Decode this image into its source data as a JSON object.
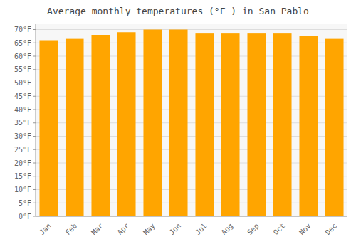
{
  "chart_data": {
    "type": "bar",
    "title": "Average monthly temperatures (°F ) in San Pablo",
    "categories": [
      "Jan",
      "Feb",
      "Mar",
      "Apr",
      "May",
      "Jun",
      "Jul",
      "Aug",
      "Sep",
      "Oct",
      "Nov",
      "Dec"
    ],
    "values": [
      66,
      66.5,
      68,
      69,
      70,
      70,
      68.5,
      68.5,
      68.5,
      68.5,
      67.5,
      66.5
    ],
    "color": "#FFA500",
    "ylim": [
      0,
      72
    ],
    "yticks": [
      {
        "value": 0,
        "label": "0°F"
      },
      {
        "value": 5,
        "label": "5°F"
      },
      {
        "value": 10,
        "label": "10°F"
      },
      {
        "value": 15,
        "label": "15°F"
      },
      {
        "value": 20,
        "label": "20°F"
      },
      {
        "value": 25,
        "label": "25°F"
      },
      {
        "value": 30,
        "label": "30°F"
      },
      {
        "value": 35,
        "label": "35°F"
      },
      {
        "value": 40,
        "label": "40°F"
      },
      {
        "value": 45,
        "label": "45°F"
      },
      {
        "value": 50,
        "label": "50°F"
      },
      {
        "value": 55,
        "label": "55°F"
      },
      {
        "value": 60,
        "label": "60°F"
      },
      {
        "value": 65,
        "label": "65°F"
      },
      {
        "value": 70,
        "label": "70°F"
      }
    ],
    "grid": true
  }
}
